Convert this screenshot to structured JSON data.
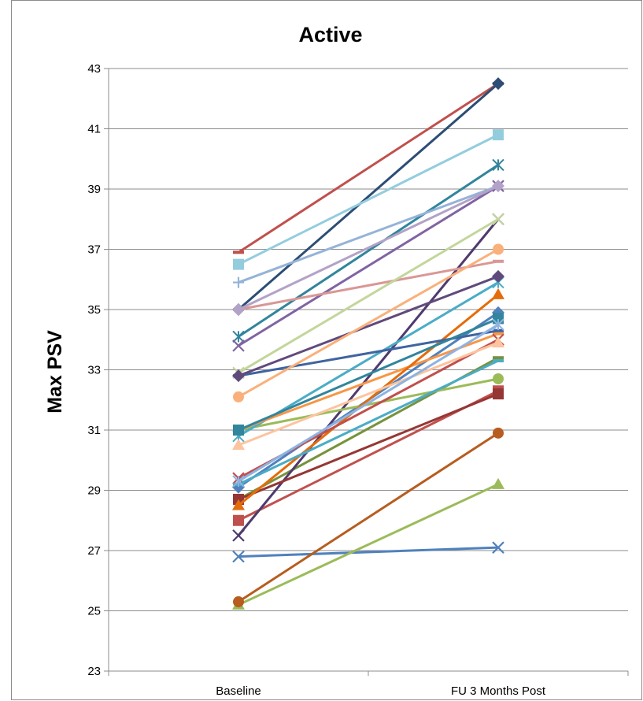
{
  "chart_data": {
    "type": "line",
    "title": "Active",
    "xlabel": "",
    "ylabel": "Max PSV",
    "categories": [
      "Baseline",
      "FU 3 Months Post"
    ],
    "ylim": [
      23,
      43
    ],
    "yticks": [
      23,
      25,
      27,
      29,
      31,
      33,
      35,
      37,
      39,
      41,
      43
    ],
    "grid": true,
    "legend": "none",
    "series": [
      {
        "values": [
          26.8,
          27.1
        ],
        "color": "#4f81bd",
        "marker": "x"
      },
      {
        "values": [
          36.9,
          42.5
        ],
        "color": "#c0504d",
        "marker": "dash"
      },
      {
        "values": [
          25.2,
          29.2
        ],
        "color": "#9bbb59",
        "marker": "triangle"
      },
      {
        "values": [
          35.0,
          42.5
        ],
        "color": "#2c4d75",
        "marker": "diamond"
      },
      {
        "values": [
          28.0,
          32.3
        ],
        "color": "#c0504d",
        "marker": "square"
      },
      {
        "values": [
          28.7,
          33.4
        ],
        "color": "#77933c",
        "marker": "dash"
      },
      {
        "values": [
          27.5,
          38.0
        ],
        "color": "#4f3a6e",
        "marker": "x"
      },
      {
        "values": [
          34.1,
          39.8
        ],
        "color": "#31859c",
        "marker": "star"
      },
      {
        "values": [
          25.3,
          30.9
        ],
        "color": "#b65d1f",
        "marker": "circle"
      },
      {
        "values": [
          29.1,
          34.9
        ],
        "color": "#4f81bd",
        "marker": "diamond"
      },
      {
        "values": [
          28.7,
          32.2
        ],
        "color": "#953735",
        "marker": "square"
      },
      {
        "values": [
          31.0,
          32.7
        ],
        "color": "#9bbb59",
        "marker": "circle"
      },
      {
        "values": [
          33.8,
          39.1
        ],
        "color": "#8064a2",
        "marker": "x"
      },
      {
        "values": [
          30.8,
          35.9
        ],
        "color": "#4bacc6",
        "marker": "star"
      },
      {
        "values": [
          31.0,
          34.2
        ],
        "color": "#f79646",
        "marker": "dash"
      },
      {
        "values": [
          35.9,
          39.1
        ],
        "color": "#95b3d7",
        "marker": "plus"
      },
      {
        "values": [
          36.5,
          40.8
        ],
        "color": "#93cddd",
        "marker": "square"
      },
      {
        "values": [
          28.5,
          35.5
        ],
        "color": "#e46c0a",
        "marker": "triangle"
      },
      {
        "values": [
          32.8,
          34.3
        ],
        "color": "#3f64a0",
        "marker": "dash"
      },
      {
        "values": [
          29.4,
          34.0
        ],
        "color": "#c0504d",
        "marker": "x"
      },
      {
        "values": [
          35.0,
          36.6
        ],
        "color": "#d99795",
        "marker": "dash"
      },
      {
        "values": [
          32.9,
          38.0
        ],
        "color": "#c3d69b",
        "marker": "x"
      },
      {
        "values": [
          32.8,
          36.1
        ],
        "color": "#604a7b",
        "marker": "diamond"
      },
      {
        "values": [
          31.0,
          34.7
        ],
        "color": "#31859c",
        "marker": "square"
      },
      {
        "values": [
          32.1,
          37.0
        ],
        "color": "#fab07a",
        "marker": "circle"
      },
      {
        "values": [
          30.5,
          33.9
        ],
        "color": "#fcc49f",
        "marker": "triangle"
      },
      {
        "values": [
          35.0,
          39.1
        ],
        "color": "#b3a2c7",
        "marker": "diamond"
      },
      {
        "values": [
          29.2,
          33.3
        ],
        "color": "#4bacc6",
        "marker": "dash"
      },
      {
        "values": [
          29.3,
          34.5
        ],
        "color": "#8db3e2",
        "marker": "star"
      }
    ]
  }
}
